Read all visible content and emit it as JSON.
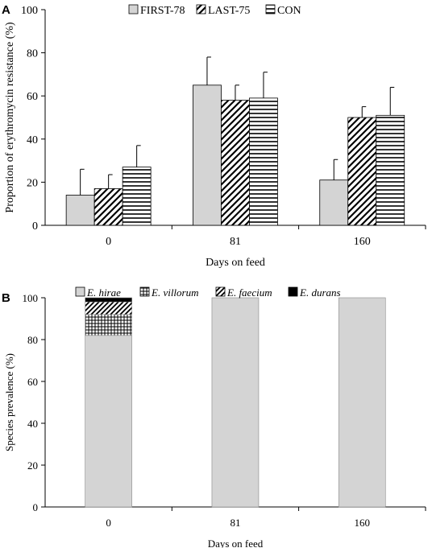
{
  "chart_data": [
    {
      "panel": "A",
      "type": "bar",
      "ylabel": "Proportion of erythromycin resistance (%)",
      "xlabel": "Days on feed",
      "categories": [
        "0",
        "81",
        "160"
      ],
      "ylim": [
        0,
        100
      ],
      "yticks": [
        "0",
        "20",
        "40",
        "60",
        "80",
        "100"
      ],
      "legend_position": "top",
      "series": [
        {
          "name": "FIRST-78",
          "pattern": "solid-gray",
          "values": [
            14,
            65,
            21
          ],
          "error": [
            12,
            13,
            9.5
          ]
        },
        {
          "name": "LAST-75",
          "pattern": "diagonal-hatch",
          "values": [
            17,
            58,
            50
          ],
          "error": [
            6.5,
            7,
            5
          ]
        },
        {
          "name": "CON",
          "pattern": "horizontal-lines",
          "values": [
            27,
            59,
            51
          ],
          "error": [
            10,
            12,
            13
          ]
        }
      ]
    },
    {
      "panel": "B",
      "type": "bar",
      "stacked": true,
      "ylabel": "Species prevalence (%)",
      "xlabel": "Days on feed",
      "categories": [
        "0",
        "81",
        "160"
      ],
      "ylim": [
        0,
        100
      ],
      "yticks": [
        "0",
        "20",
        "40",
        "60",
        "80",
        "100"
      ],
      "legend_position": "top",
      "series": [
        {
          "name": "E. hirae",
          "pattern": "solid-gray",
          "values": [
            82,
            100,
            100
          ]
        },
        {
          "name": "E. villorum",
          "pattern": "grid",
          "values": [
            10,
            0,
            0
          ]
        },
        {
          "name": "E. faecium",
          "pattern": "diagonal-hatch",
          "values": [
            6,
            0,
            0
          ]
        },
        {
          "name": "E. durans",
          "pattern": "solid-black",
          "values": [
            2,
            0,
            0
          ]
        }
      ]
    }
  ]
}
